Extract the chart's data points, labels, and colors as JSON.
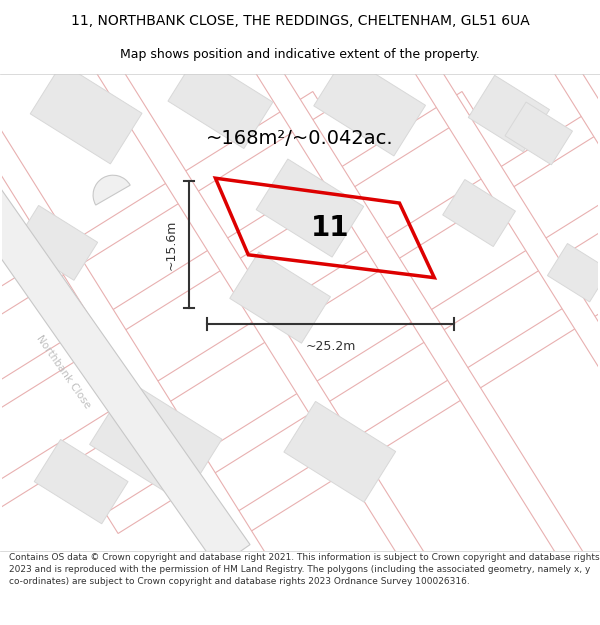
{
  "title_line1": "11, NORTHBANK CLOSE, THE REDDINGS, CHELTENHAM, GL51 6UA",
  "title_line2": "Map shows position and indicative extent of the property.",
  "area_text": "~168m²/~0.042ac.",
  "label_number": "11",
  "dim_width": "~25.2m",
  "dim_height": "~15.6m",
  "footer_text": "Contains OS data © Crown copyright and database right 2021. This information is subject to Crown copyright and database rights 2023 and is reproduced with the permission of HM Land Registry. The polygons (including the associated geometry, namely x, y co-ordinates) are subject to Crown copyright and database rights 2023 Ordnance Survey 100026316.",
  "bg_color": "#ffffff",
  "map_bg": "#ffffff",
  "plot_stroke": "#dd0000",
  "road_outline_color": "#e8b0b0",
  "road_fill_color": "#ffffff",
  "building_fill": "#e8e8e8",
  "building_stroke": "#d8d8d8",
  "road_label_color": "#c0c0c0",
  "dim_color": "#333333",
  "text_color": "#000000",
  "title_fontsize": 10,
  "subtitle_fontsize": 9,
  "footer_fontsize": 6.5
}
